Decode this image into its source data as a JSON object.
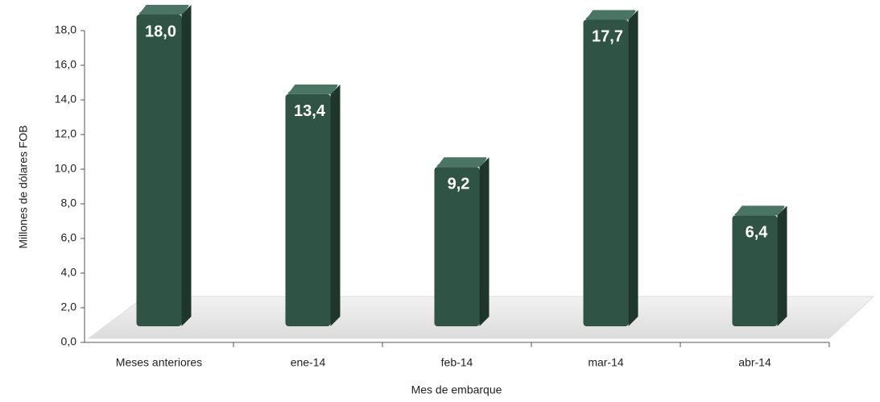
{
  "chart_data": {
    "type": "bar",
    "x_label": "Mes de embarque",
    "y_label": "Millones de dólares FOB",
    "categories": [
      "Meses anteriores",
      "ene-14",
      "feb-14",
      "mar-14",
      "abr-14"
    ],
    "values": [
      18.0,
      13.4,
      9.2,
      17.7,
      6.4
    ],
    "value_labels": [
      "18,0",
      "13,4",
      "9,2",
      "17,7",
      "6,4"
    ],
    "color": "#2f5446",
    "ylim": [
      0,
      18
    ],
    "yticks": [
      {
        "value": 0,
        "label": "0,0"
      },
      {
        "value": 2,
        "label": "2,0"
      },
      {
        "value": 4,
        "label": "4,0"
      },
      {
        "value": 6,
        "label": "6,0"
      },
      {
        "value": 8,
        "label": "8,0"
      },
      {
        "value": 10,
        "label": "10,0"
      },
      {
        "value": 12,
        "label": "12,0"
      },
      {
        "value": 14,
        "label": "14,0"
      },
      {
        "value": 16,
        "label": "16,0"
      },
      {
        "value": 18,
        "label": "18,0"
      }
    ],
    "grid": false
  }
}
